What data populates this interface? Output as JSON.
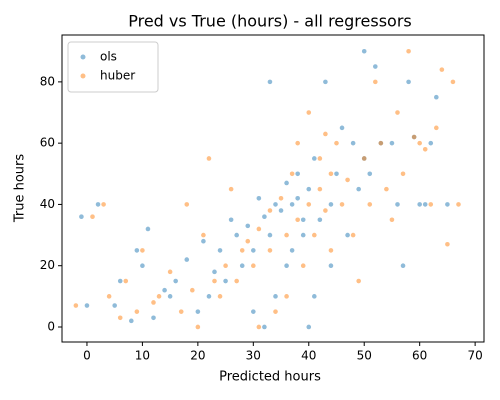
{
  "chart_data": {
    "type": "scatter",
    "title": "Pred vs True (hours) - all regressors",
    "x_label": "Predicted hours",
    "y_label": "True hours",
    "xlim": [
      -4.5,
      71.6
    ],
    "ylim": [
      -4.9,
      95.3
    ],
    "xticks": [
      0,
      10,
      20,
      30,
      40,
      50,
      60,
      70
    ],
    "yticks": [
      0,
      20,
      40,
      60,
      80
    ],
    "legend": "upper left",
    "series": [
      {
        "name": "ols",
        "color": "#1f77b4",
        "x": [
          37,
          38,
          40,
          35,
          33,
          30,
          28,
          25,
          22,
          20,
          15,
          12,
          8,
          5,
          2,
          -1,
          0,
          45,
          48,
          50,
          52,
          55,
          58,
          60,
          62,
          65,
          44,
          42,
          39,
          36,
          34,
          32,
          30,
          27,
          26,
          24,
          23,
          21,
          18,
          16,
          14,
          11,
          10,
          9,
          6,
          40,
          41,
          43,
          46,
          47,
          49,
          51,
          53,
          56,
          59,
          63,
          38,
          36,
          34,
          32,
          31,
          29,
          37,
          39,
          41,
          44,
          50,
          33,
          57,
          61
        ],
        "values": [
          40,
          42,
          45,
          38,
          30,
          25,
          20,
          15,
          10,
          5,
          10,
          3,
          2,
          7,
          40,
          36,
          7,
          50,
          60,
          55,
          85,
          60,
          80,
          40,
          60,
          40,
          40,
          35,
          30,
          20,
          10,
          0,
          5,
          30,
          35,
          25,
          18,
          28,
          22,
          15,
          12,
          32,
          20,
          25,
          15,
          0,
          10,
          80,
          65,
          30,
          45,
          50,
          60,
          40,
          62,
          75,
          50,
          47,
          40,
          36,
          42,
          33,
          25,
          35,
          55,
          20,
          90,
          80,
          20,
          40
        ]
      },
      {
        "name": "huber",
        "color": "#ff7f0e",
        "x": [
          40,
          42,
          44,
          38,
          36,
          33,
          30,
          27,
          24,
          20,
          17,
          13,
          9,
          6,
          3,
          1,
          -2,
          47,
          50,
          53,
          56,
          58,
          60,
          63,
          66,
          67,
          46,
          43,
          41,
          39,
          36,
          34,
          31,
          28,
          25,
          23,
          21,
          19,
          15,
          12,
          10,
          7,
          4,
          45,
          48,
          51,
          54,
          57,
          59,
          62,
          65,
          40,
          38,
          35,
          33,
          31,
          29,
          37,
          42,
          44,
          49,
          55,
          61,
          64,
          18,
          22,
          26,
          43,
          52
        ],
        "values": [
          40,
          45,
          50,
          35,
          30,
          25,
          20,
          15,
          10,
          0,
          5,
          10,
          5,
          3,
          40,
          36,
          7,
          48,
          55,
          60,
          70,
          90,
          60,
          65,
          80,
          40,
          40,
          38,
          30,
          20,
          10,
          5,
          0,
          25,
          20,
          15,
          30,
          12,
          18,
          8,
          25,
          15,
          10,
          60,
          30,
          40,
          45,
          50,
          62,
          40,
          27,
          70,
          60,
          42,
          38,
          32,
          28,
          50,
          55,
          25,
          15,
          35,
          58,
          84,
          40,
          55,
          45,
          63,
          80
        ]
      }
    ]
  }
}
